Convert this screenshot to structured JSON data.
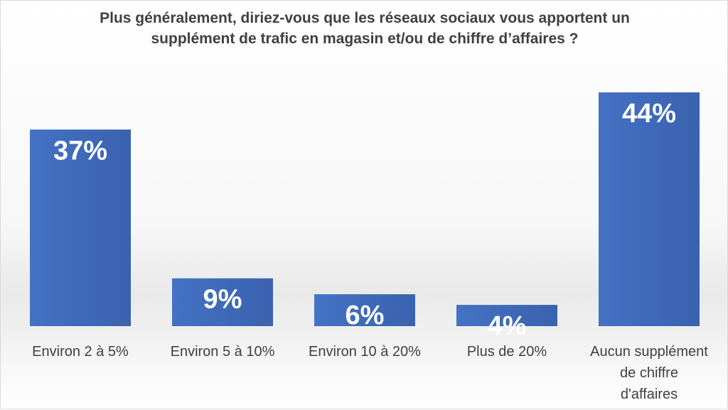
{
  "chart_data": {
    "type": "bar",
    "title_lines": [
      "Plus généralement, diriez-vous que les réseaux sociaux vous apportent un",
      "supplément de trafic en magasin et/ou de chiffre d’affaires ?"
    ],
    "categories": [
      [
        "Environ 2 à 5%"
      ],
      [
        "Environ 5 à 10%"
      ],
      [
        "Environ 10 à 20%"
      ],
      [
        "Plus de 20%"
      ],
      [
        "Aucun supplément",
        "de chiffre",
        "d'affaires"
      ]
    ],
    "values": [
      37,
      9,
      6,
      4,
      44
    ],
    "data_labels": [
      "37%",
      "9%",
      "6%",
      "4%",
      "44%"
    ],
    "unit": "%",
    "ylim": [
      0,
      44
    ],
    "grid": false,
    "legend": "none",
    "bar_color": "#4472C4",
    "bar_color_dark": "#3A62AE"
  }
}
